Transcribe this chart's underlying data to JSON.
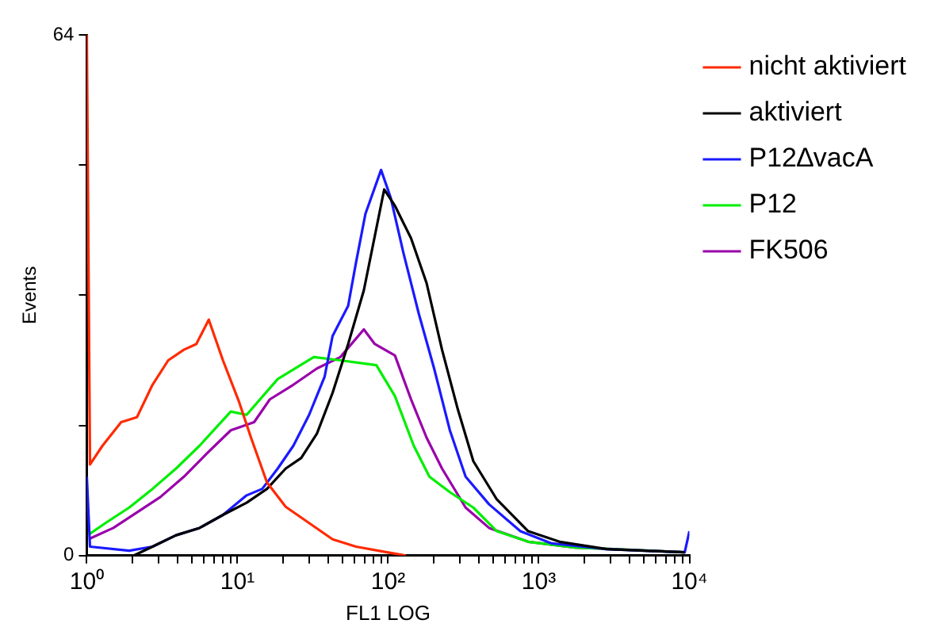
{
  "chart_data": {
    "type": "line",
    "xlabel": "FL1 LOG",
    "ylabel": "Events",
    "log": "x",
    "xlim": [
      1,
      10000
    ],
    "ylim": [
      0,
      64
    ],
    "xticks": [
      {
        "value": 1,
        "label": "10⁰"
      },
      {
        "value": 2,
        "label": null
      },
      {
        "value": 3,
        "label": null
      },
      {
        "value": 4,
        "label": null
      },
      {
        "value": 5,
        "label": null
      },
      {
        "value": 6,
        "label": null
      },
      {
        "value": 7,
        "label": null
      },
      {
        "value": 8,
        "label": null
      },
      {
        "value": 9,
        "label": null
      },
      {
        "value": 10,
        "label": "10¹"
      },
      {
        "value": 20,
        "label": null
      },
      {
        "value": 30,
        "label": null
      },
      {
        "value": 40,
        "label": null
      },
      {
        "value": 50,
        "label": null
      },
      {
        "value": 60,
        "label": null
      },
      {
        "value": 70,
        "label": null
      },
      {
        "value": 80,
        "label": null
      },
      {
        "value": 90,
        "label": null
      },
      {
        "value": 100,
        "label": "10²"
      },
      {
        "value": 200,
        "label": null
      },
      {
        "value": 300,
        "label": null
      },
      {
        "value": 400,
        "label": null
      },
      {
        "value": 500,
        "label": null
      },
      {
        "value": 600,
        "label": null
      },
      {
        "value": 700,
        "label": null
      },
      {
        "value": 800,
        "label": null
      },
      {
        "value": 900,
        "label": null
      },
      {
        "value": 1000,
        "label": "10³"
      },
      {
        "value": 2000,
        "label": null
      },
      {
        "value": 3000,
        "label": null
      },
      {
        "value": 4000,
        "label": null
      },
      {
        "value": 5000,
        "label": null
      },
      {
        "value": 6000,
        "label": null
      },
      {
        "value": 7000,
        "label": null
      },
      {
        "value": 8000,
        "label": null
      },
      {
        "value": 9000,
        "label": null
      },
      {
        "value": 10000,
        "label": "10⁴"
      }
    ],
    "yticks": [
      0,
      {
        "value": 16,
        "label": null
      },
      {
        "value": 32,
        "label": null
      },
      {
        "value": 48,
        "label": null
      },
      64
    ],
    "grid": false,
    "legend": "top right",
    "marker": "none",
    "line_style": "solid",
    "series": [
      {
        "name": "nicht aktiviert",
        "color": "#ff2a00",
        "x": [
          1,
          1.05,
          1.27,
          1.69,
          2.15,
          2.73,
          3.47,
          4.41,
          5.33,
          6.45,
          8.01,
          10.2,
          12.3,
          15.7,
          20.9,
          29.9,
          42.8,
          61.2,
          98.6,
          131
        ],
        "values": [
          64,
          11.2,
          13.5,
          16.4,
          17,
          21,
          24,
          25.3,
          26,
          29,
          24,
          19,
          14.5,
          9,
          6,
          4,
          2,
          1.1,
          0.4,
          0
        ]
      },
      {
        "name": "aktiviert",
        "color": "#000000",
        "x": [
          2.05,
          2.73,
          3.91,
          5.6,
          8.01,
          11.5,
          15.7,
          20.9,
          26.5,
          33.7,
          42.8,
          54.3,
          69,
          94.2,
          111,
          142,
          180,
          228,
          290,
          368,
          527,
          851,
          1373,
          2814,
          9311
        ],
        "values": [
          0,
          1.1,
          2.5,
          3.4,
          5,
          6.5,
          8.2,
          10.7,
          12,
          15,
          20,
          26,
          32.6,
          45,
          43,
          39,
          33.5,
          25.3,
          18,
          11.6,
          6.9,
          3,
          1.7,
          0.8,
          0.4
        ]
      },
      {
        "name": "P12∆vacA",
        "color": "#1a1aff",
        "x": [
          1,
          1.05,
          1.91,
          2.73,
          3.91,
          5.6,
          8.01,
          11.5,
          14.6,
          18.5,
          23.5,
          29.9,
          37.9,
          42.8,
          54.3,
          61.2,
          70.7,
          89.8,
          104,
          126,
          160,
          202,
          257,
          327,
          468,
          755,
          1219,
          2814,
          9311,
          10000
        ],
        "values": [
          9.7,
          1.1,
          0.6,
          1.1,
          2.5,
          3.4,
          5,
          7.4,
          8.2,
          10.7,
          13.5,
          17.3,
          22,
          27,
          30.7,
          36,
          42,
          47.4,
          44,
          37.3,
          29.7,
          23,
          15.4,
          9.7,
          6.3,
          3,
          1.5,
          0.8,
          0.4,
          3
        ]
      },
      {
        "name": "P12",
        "color": "#00ee00",
        "x": [
          1.05,
          1.33,
          1.91,
          2.73,
          3.91,
          5.6,
          9.03,
          11.5,
          18.5,
          32.1,
          48.2,
          83.6,
          111,
          148,
          188,
          257,
          368,
          527,
          851,
          1745,
          9311
        ],
        "values": [
          2.7,
          4,
          5.9,
          8.2,
          10.7,
          13.5,
          17.7,
          17.3,
          21.7,
          24.4,
          24,
          23.4,
          19.6,
          13.5,
          9.7,
          7.8,
          5.9,
          3,
          1.7,
          1,
          0.4
        ]
      },
      {
        "name": "FK506",
        "color": "#9900aa",
        "x": [
          1.05,
          1.5,
          2.15,
          3.08,
          4.41,
          6.31,
          9.03,
          12.9,
          16.4,
          23.5,
          33.7,
          48.2,
          69,
          81.6,
          111,
          142,
          180,
          228,
          327,
          468,
          851,
          1745,
          9311
        ],
        "values": [
          2.1,
          3.4,
          5.3,
          7.2,
          9.7,
          12.6,
          15.4,
          16.4,
          19.2,
          21,
          23,
          24.4,
          27.8,
          26,
          24.6,
          19.2,
          14.5,
          10.7,
          5.9,
          3.4,
          1.7,
          1,
          0.4
        ]
      }
    ]
  }
}
